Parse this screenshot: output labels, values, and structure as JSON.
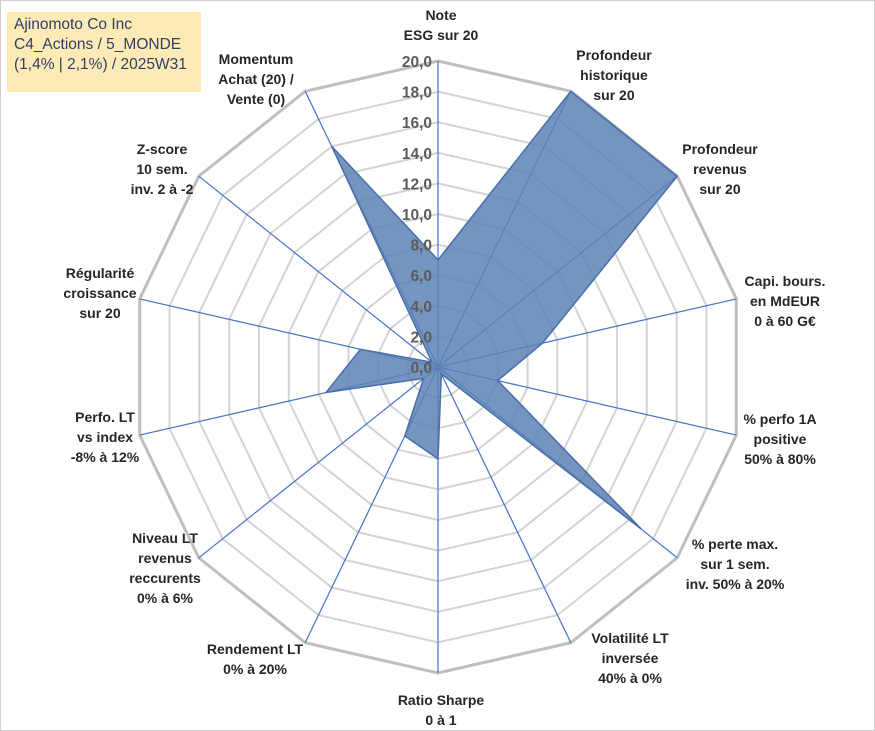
{
  "title_box": {
    "line1": "Ajinomoto Co Inc",
    "line2": "C4_Actions / 5_MONDE",
    "line3": "(1,4% | 2,1%) / 2025W31"
  },
  "chart_data": {
    "type": "radar",
    "range": [
      0,
      20
    ],
    "tick_values": [
      0,
      2,
      4,
      6,
      8,
      10,
      12,
      14,
      16,
      18,
      20
    ],
    "tick_labels": [
      "0,0",
      "2,0",
      "4,0",
      "6,0",
      "8,0",
      "10,0",
      "12,0",
      "14,0",
      "16,0",
      "18,0",
      "20,0"
    ],
    "axes": [
      [
        "Note",
        "ESG sur 20"
      ],
      [
        "Profondeur",
        "historique",
        "sur 20"
      ],
      [
        "Profondeur",
        "revenus",
        "sur 20"
      ],
      [
        "Capi. bours.",
        "en MdEUR",
        "0 à 60 G€"
      ],
      [
        "% perfo 1A",
        "positive",
        "50% à 80%"
      ],
      [
        "% perte max.",
        "sur 1 sem.",
        "inv. 50% à 20%"
      ],
      [
        "Volatilité LT",
        "inversée",
        "40% à 0%"
      ],
      [
        "Ratio Sharpe",
        "0 à 1"
      ],
      [
        "Rendement LT",
        "0% à 20%"
      ],
      [
        "Niveau LT",
        "revenus",
        "reccurents",
        "0% à 6%"
      ],
      [
        "Perfo. LT",
        "vs index",
        "-8% à 12%"
      ],
      [
        "Régularité",
        "croissance",
        "sur 20"
      ],
      [
        "Z-score",
        "10 sem.",
        "inv. 2 à -2"
      ],
      [
        "Momentum",
        "Achat (20) /",
        "Vente (0)"
      ]
    ],
    "series": [
      {
        "values": [
          7.0,
          20.0,
          20.0,
          7.0,
          4.0,
          17.0,
          0.5,
          6.0,
          5.0,
          1.2,
          7.5,
          5.2,
          0.5,
          16.0
        ]
      }
    ],
    "fill_color": "#5b82b5",
    "line_color": "#4a6fa8",
    "spoke_color": "#4472c4",
    "grid_color": "#d3d3d3",
    "outer_grid_color": "#bfbfbf"
  }
}
